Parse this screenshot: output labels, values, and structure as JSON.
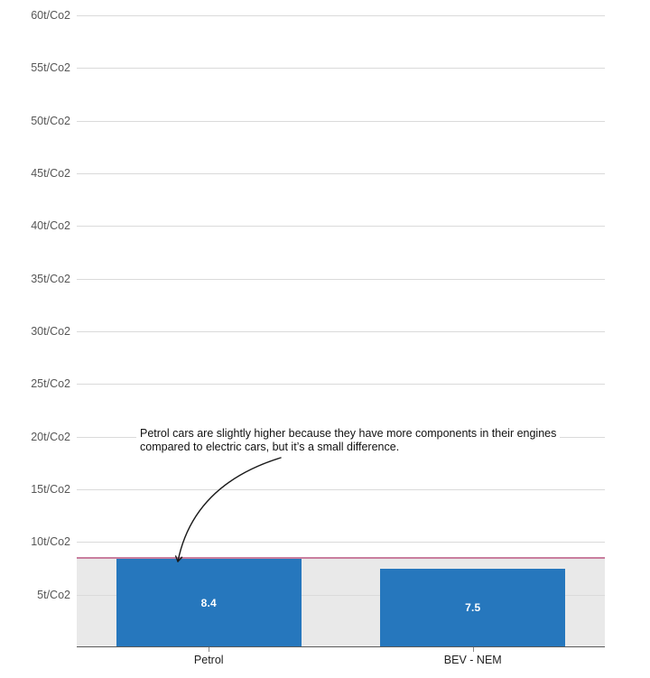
{
  "chart_data": {
    "type": "bar",
    "title": "",
    "unit": "t/Co2",
    "categories": [
      "Petrol",
      "BEV - NEM"
    ],
    "values": [
      8.4,
      7.5
    ],
    "bar_value_labels": [
      "8.4",
      "7.5"
    ],
    "ylim": [
      0,
      60
    ],
    "grid": true,
    "legend": "none",
    "reference_line_value": 8.4,
    "y_ticks": [
      {
        "value": 60,
        "label": "60t/Co2"
      },
      {
        "value": 55,
        "label": "55t/Co2"
      },
      {
        "value": 50,
        "label": "50t/Co2"
      },
      {
        "value": 45,
        "label": "45t/Co2"
      },
      {
        "value": 40,
        "label": "40t/Co2"
      },
      {
        "value": 35,
        "label": "35t/Co2"
      },
      {
        "value": 30,
        "label": "30t/Co2"
      },
      {
        "value": 25,
        "label": "25t/Co2"
      },
      {
        "value": 20,
        "label": "20t/Co2"
      },
      {
        "value": 15,
        "label": "15t/Co2"
      },
      {
        "value": 10,
        "label": "10t/Co2"
      },
      {
        "value": 5,
        "label": "5t/Co2"
      }
    ],
    "annotation": {
      "text": "Petrol cars are slightly higher because they have more components in their engines compared to electric cars, but it’s a small difference.",
      "lines": [
        "Petrol cars are slightly higher because they have more components in their engines",
        "compared to electric cars, but it’s a small difference."
      ]
    },
    "colors": {
      "bar": "#2677BD",
      "reference_line": "#C97E9E",
      "band": "#E9E9E9",
      "gridline": "#DADADA",
      "axis_line": "#5A5A5A",
      "tick_mark": "#8A8A8A",
      "tick_label": "#575757",
      "category_label": "#1F1F1F",
      "value_label": "#FFFFFF",
      "annotation_text": "#111111",
      "arrow": "#1A1A1A",
      "background": "#FFFFFF"
    }
  }
}
